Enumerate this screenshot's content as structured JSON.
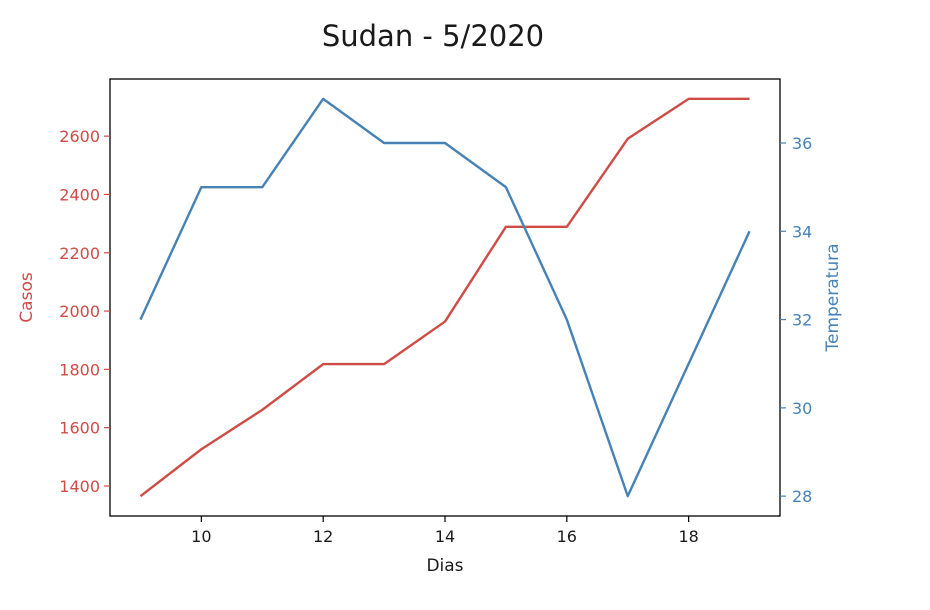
{
  "chart_data": {
    "type": "line",
    "title": "Sudan - 5/2020",
    "xlabel": "Dias",
    "ylabel_left": "Casos",
    "ylabel_right": "Temperatura",
    "x": [
      9,
      10,
      11,
      12,
      13,
      14,
      15,
      16,
      17,
      18,
      19
    ],
    "xlim": [
      8.5,
      19.5
    ],
    "xticks": [
      10,
      12,
      14,
      16,
      18
    ],
    "series": [
      {
        "axis": "left",
        "color": "#cd4c46",
        "values": [
          1365,
          1526,
          1661,
          1818,
          1818,
          1964,
          2289,
          2289,
          2591,
          2728,
          2728
        ]
      },
      {
        "axis": "right",
        "color": "#4682b4",
        "values": [
          32,
          35,
          35,
          37,
          36,
          36,
          35,
          32,
          28,
          31,
          34
        ]
      }
    ],
    "ylim_left": [
      1297,
      2796
    ],
    "yticks_left": [
      1400,
      1600,
      1800,
      2000,
      2200,
      2400,
      2600
    ],
    "ylim_right": [
      27.55,
      37.45
    ],
    "yticks_right": [
      28,
      30,
      32,
      34,
      36
    ],
    "left_axis_color": "#cd4c46",
    "right_axis_color": "#4682b4",
    "grid": false
  }
}
